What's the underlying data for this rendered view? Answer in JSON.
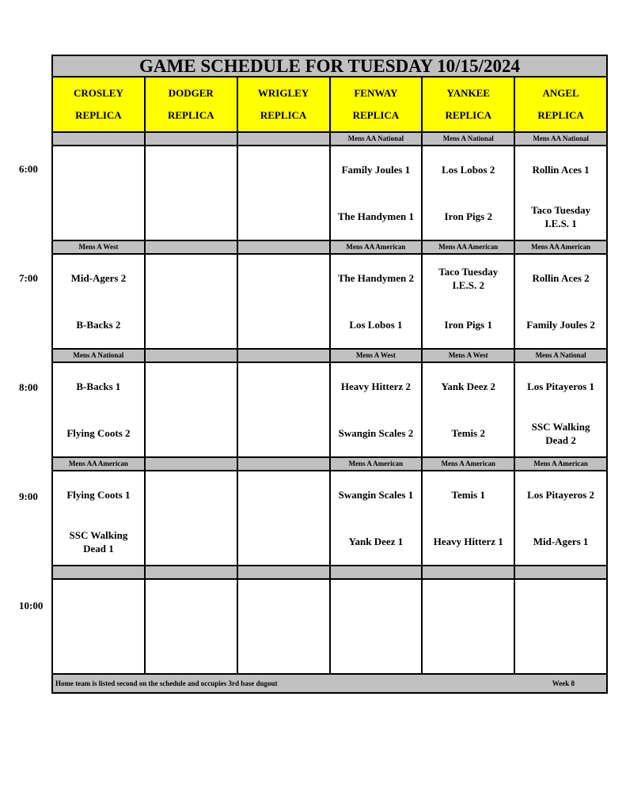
{
  "title": "GAME SCHEDULE FOR TUESDAY 10/15/2024",
  "fields": [
    [
      "CROSLEY",
      "REPLICA"
    ],
    [
      "DODGER",
      "REPLICA"
    ],
    [
      "WRIGLEY",
      "REPLICA"
    ],
    [
      "FENWAY",
      "REPLICA"
    ],
    [
      "YANKEE",
      "REPLICA"
    ],
    [
      "ANGEL",
      "REPLICA"
    ]
  ],
  "slots": [
    {
      "time": "6:00",
      "labels": [
        "",
        "",
        "",
        "Mens AA National",
        "Mens A National",
        "Mens AA National"
      ],
      "games": [
        [
          "",
          ""
        ],
        [
          "",
          ""
        ],
        [
          "",
          ""
        ],
        [
          "Family Joules 1",
          "The Handymen 1"
        ],
        [
          "Los Lobos 2",
          "Iron Pigs 2"
        ],
        [
          "Rollin Aces 1",
          "Taco Tuesday I.E.S. 1"
        ]
      ]
    },
    {
      "time": "7:00",
      "labels": [
        "Mens A West",
        "",
        "",
        "Mens AA American",
        "Mens AA American",
        "Mens AA American"
      ],
      "games": [
        [
          "Mid-Agers 2",
          "B-Backs 2"
        ],
        [
          "",
          ""
        ],
        [
          "",
          ""
        ],
        [
          "The Handymen 2",
          "Los Lobos 1"
        ],
        [
          "Taco Tuesday I.E.S. 2",
          "Iron Pigs 1"
        ],
        [
          "Rollin Aces 2",
          "Family Joules 2"
        ]
      ]
    },
    {
      "time": "8:00",
      "labels": [
        "Mens A National",
        "",
        "",
        "Mens A West",
        "Mens A West",
        "Mens A National"
      ],
      "games": [
        [
          "B-Backs 1",
          "Flying Coots 2"
        ],
        [
          "",
          ""
        ],
        [
          "",
          ""
        ],
        [
          "Heavy Hitterz 2",
          "Swangin Scales 2"
        ],
        [
          "Yank Deez 2",
          "Temis 2"
        ],
        [
          "Los Pitayeros 1",
          "SSC Walking Dead 2"
        ]
      ]
    },
    {
      "time": "9:00",
      "labels": [
        "Mens AA American",
        "",
        "",
        "Mens A American",
        "Mens A American",
        "Mens A American"
      ],
      "games": [
        [
          "Flying Coots 1",
          "SSC Walking Dead 1"
        ],
        [
          "",
          ""
        ],
        [
          "",
          ""
        ],
        [
          "Swangin Scales 1",
          "Yank Deez 1"
        ],
        [
          "Temis 1",
          "Heavy Hitterz 1"
        ],
        [
          "Los Pitayeros 2",
          "Mid-Agers 1"
        ]
      ]
    },
    {
      "time": "10:00",
      "labels": [
        "",
        "",
        "",
        "",
        "",
        ""
      ],
      "games": [
        [
          "",
          ""
        ],
        [
          "",
          ""
        ],
        [
          "",
          ""
        ],
        [
          "",
          ""
        ],
        [
          "",
          ""
        ],
        [
          "",
          ""
        ]
      ]
    }
  ],
  "footer": {
    "note": "Home team is listed second on the schedule and occupies 3rd base dugout",
    "week": "Week 8"
  }
}
